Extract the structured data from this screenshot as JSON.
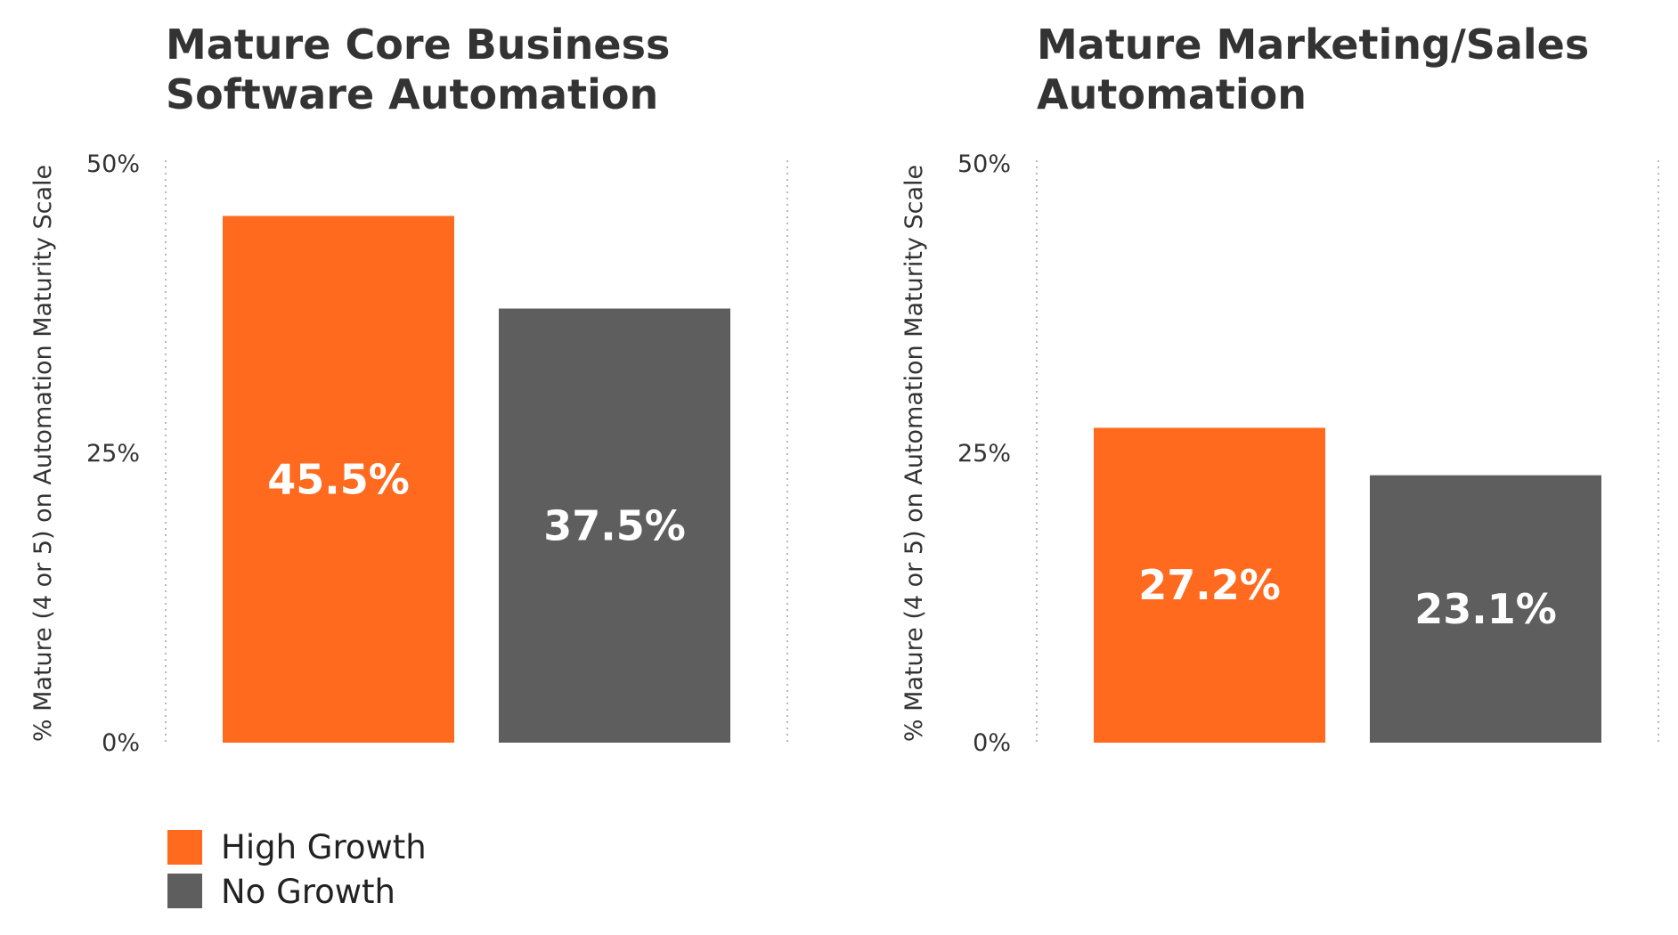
{
  "chart_data": [
    {
      "type": "bar",
      "title_lines": [
        "Mature Core Business",
        "Software Automation"
      ],
      "ylabel": "% Mature (4 or 5) on Automation Maturity Scale",
      "ylim": [
        0,
        50
      ],
      "yticks": [
        "0%",
        "25%",
        "50%"
      ],
      "series": [
        {
          "name": "High Growth",
          "values": [
            45.5
          ],
          "value_labels": [
            "45.5%"
          ]
        },
        {
          "name": "No Growth",
          "values": [
            37.5
          ],
          "value_labels": [
            "37.5%"
          ]
        }
      ],
      "grid": false
    },
    {
      "type": "bar",
      "title_lines": [
        "Mature Marketing/Sales",
        "Automation"
      ],
      "ylabel": "% Mature (4 or 5) on Automation Maturity Scale",
      "ylim": [
        0,
        50
      ],
      "yticks": [
        "0%",
        "25%",
        "50%"
      ],
      "series": [
        {
          "name": "High Growth",
          "values": [
            27.2
          ],
          "value_labels": [
            "27.2%"
          ]
        },
        {
          "name": "No Growth",
          "values": [
            23.1
          ],
          "value_labels": [
            "23.1%"
          ]
        }
      ],
      "grid": false
    }
  ],
  "legend": {
    "placement": "bottom-left",
    "items": [
      {
        "label": "High Growth",
        "color": "#ff6a1f"
      },
      {
        "label": "No Growth",
        "color": "#5e5e5e"
      }
    ]
  },
  "colors": {
    "high_growth": "#ff6a1f",
    "no_growth": "#5e5e5e",
    "text": "#333333"
  }
}
